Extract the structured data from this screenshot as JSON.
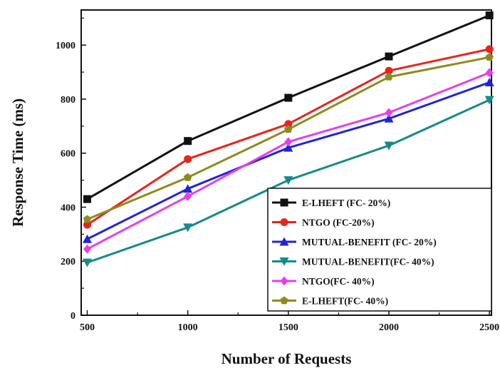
{
  "chart_data": {
    "type": "line",
    "title": "",
    "xlabel": "Number of Requests",
    "ylabel": "Response Time (ms)",
    "x": [
      500,
      1000,
      1500,
      2000,
      2500
    ],
    "xlim": [
      470,
      2510
    ],
    "ylim": [
      0,
      1130
    ],
    "x_ticks": [
      "500",
      "1000",
      "1500",
      "2000",
      "2500"
    ],
    "y_ticks": [
      "0",
      "200",
      "400",
      "600",
      "800",
      "1000"
    ],
    "grid": false,
    "legend_position": "bottom-right",
    "series": [
      {
        "name": "E-LHEFT (FC- 20%)",
        "color": "#111111",
        "marker": "square",
        "values": [
          430,
          645,
          805,
          958,
          1110
        ]
      },
      {
        "name": "NTGO (FC-20%)",
        "color": "#e8241c",
        "marker": "circle",
        "values": [
          335,
          578,
          708,
          905,
          985
        ]
      },
      {
        "name": "MUTUAL-BENEFIT (FC- 20%)",
        "color": "#2323d6",
        "marker": "triangle-up",
        "values": [
          282,
          468,
          620,
          728,
          862
        ]
      },
      {
        "name": "MUTUAL-BENEFIT(FC- 40%)",
        "color": "#168a8a",
        "marker": "triangle-down",
        "values": [
          195,
          325,
          500,
          628,
          797
        ]
      },
      {
        "name": "NTGO(FC- 40%)",
        "color": "#e83ee8",
        "marker": "diamond",
        "values": [
          245,
          440,
          642,
          750,
          898
        ]
      },
      {
        "name": "E-LHEFT(FC- 40%)",
        "color": "#8c8c1e",
        "marker": "pentagon",
        "values": [
          355,
          510,
          688,
          882,
          955
        ]
      }
    ]
  }
}
